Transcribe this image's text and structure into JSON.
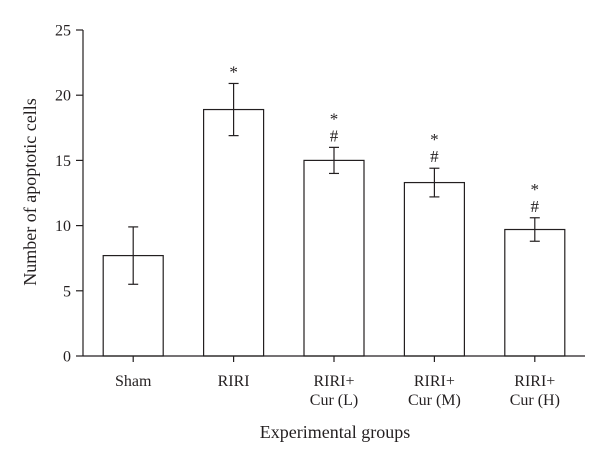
{
  "chart_data": {
    "type": "bar",
    "categories": [
      [
        "Sham"
      ],
      [
        "RIRI"
      ],
      [
        "RIRI+",
        "Cur (L)"
      ],
      [
        "RIRI+",
        "Cur (M)"
      ],
      [
        "RIRI+",
        "Cur (H)"
      ]
    ],
    "values": [
      7.7,
      18.9,
      15.0,
      13.3,
      9.7
    ],
    "errors": [
      2.2,
      2.0,
      1.0,
      1.1,
      0.9
    ],
    "annotations": [
      [],
      [
        "*"
      ],
      [
        "*",
        "#"
      ],
      [
        "*",
        "#"
      ],
      [
        "*",
        "#"
      ]
    ],
    "xlabel": "Experimental groups",
    "ylabel": "Number of apoptotic cells",
    "ylim": [
      0,
      25
    ],
    "yticks": [
      0,
      5,
      10,
      15,
      20,
      25
    ],
    "grid": false
  }
}
